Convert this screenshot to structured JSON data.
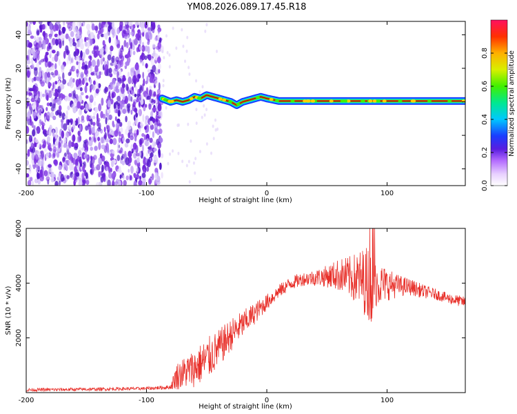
{
  "title": "YM08.2026.089.17.45.R18",
  "colors": {
    "snr_line": "#e8302a",
    "ridge_outline": "#222222",
    "speckle_dark": "#7a2ee0",
    "speckle_light": "#d8c8f8"
  },
  "chart_data": [
    {
      "type": "heatmap",
      "title": "YM08.2026.089.17.45.R18",
      "xlabel": "Height of straight line (km)",
      "ylabel": "Frequency (Hz)",
      "xlim": [
        -200,
        165
      ],
      "ylim": [
        -50,
        48
      ],
      "x_ticks": [
        -200,
        -100,
        0,
        100
      ],
      "y_ticks": [
        -40,
        -20,
        0,
        20,
        40
      ],
      "noise_region_x": [
        -200,
        -87
      ],
      "signal_onset_x": -87,
      "ridge": {
        "x": [
          -87,
          -80,
          -75,
          -70,
          -65,
          -60,
          -55,
          -50,
          -45,
          -40,
          -35,
          -30,
          -25,
          -20,
          -15,
          -10,
          -5,
          0,
          10,
          165
        ],
        "y": [
          2,
          0,
          1,
          0,
          1,
          3,
          2,
          4,
          3,
          2,
          1,
          0,
          -2,
          0,
          1,
          2,
          3,
          2,
          0.5,
          0.5
        ]
      },
      "colorbar": {
        "label": "Normalized spectral amplitude",
        "range": [
          0,
          1
        ],
        "ticks": [
          0,
          0.2,
          0.4,
          0.6,
          0.8
        ],
        "tick_labels": [
          "0.0",
          "0.2",
          "0.4",
          "0.6",
          "0.8"
        ]
      }
    },
    {
      "type": "line",
      "xlabel": "Height of straight line (km)",
      "ylabel": "SNR (10 * v/v)",
      "xlim": [
        -200,
        165
      ],
      "ylim": [
        0,
        6000
      ],
      "x_ticks": [
        -200,
        -100,
        0,
        100
      ],
      "y_ticks": [
        2000,
        4000,
        6000
      ],
      "series": [
        {
          "name": "SNR",
          "x": [
            -200,
            -150,
            -100,
            -80,
            -75,
            -60,
            -50,
            -40,
            -30,
            -20,
            -10,
            0,
            10,
            20,
            30,
            40,
            50,
            60,
            70,
            80,
            87,
            90,
            100,
            110,
            120,
            130,
            140,
            150,
            165
          ],
          "y": [
            100,
            120,
            150,
            200,
            600,
            900,
            1200,
            1600,
            2100,
            2500,
            2900,
            3300,
            3700,
            4000,
            4150,
            4200,
            4250,
            4300,
            4200,
            4100,
            4000,
            4000,
            3950,
            3900,
            3850,
            3700,
            3600,
            3450,
            3300
          ],
          "noise_amplitude": [
            60,
            60,
            60,
            80,
            500,
            700,
            800,
            700,
            600,
            500,
            400,
            300,
            250,
            250,
            250,
            300,
            400,
            600,
            800,
            1200,
            1500,
            900,
            600,
            400,
            300,
            250,
            200,
            200,
            200
          ]
        }
      ]
    }
  ]
}
